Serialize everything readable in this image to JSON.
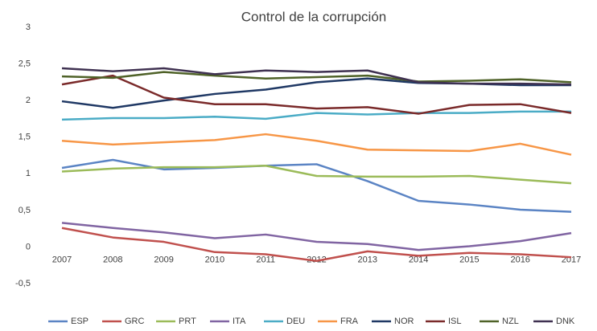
{
  "chart_data": {
    "type": "line",
    "title": "Control de la corrupción",
    "categories": [
      "2007",
      "2008",
      "2009",
      "2010",
      "2011",
      "2012",
      "2013",
      "2014",
      "2015",
      "2016",
      "2017"
    ],
    "ylim": [
      -0.5,
      3
    ],
    "yticks": [
      {
        "value": -0.5,
        "label": "-0,5"
      },
      0,
      {
        "value": 0.5,
        "label": "0,5"
      },
      1,
      {
        "value": 1.5,
        "label": "1,5"
      },
      2,
      {
        "value": 2.5,
        "label": "2,5"
      },
      3
    ],
    "grid": false,
    "legend": "bottom",
    "series": [
      {
        "name": "ESP",
        "color": "#5b84c4",
        "values": [
          1.08,
          1.19,
          1.06,
          1.08,
          1.11,
          1.13,
          0.9,
          0.63,
          0.58,
          0.51,
          0.48
        ]
      },
      {
        "name": "GRC",
        "color": "#c0504d",
        "values": [
          0.26,
          0.13,
          0.07,
          -0.07,
          -0.1,
          -0.19,
          -0.06,
          -0.12,
          -0.08,
          -0.1,
          -0.14
        ]
      },
      {
        "name": "PRT",
        "color": "#9bbb59",
        "values": [
          1.03,
          1.07,
          1.09,
          1.09,
          1.11,
          0.97,
          0.96,
          0.96,
          0.97,
          0.92,
          0.87
        ]
      },
      {
        "name": "ITA",
        "color": "#8064a2",
        "values": [
          0.33,
          0.26,
          0.2,
          0.12,
          0.17,
          0.07,
          0.04,
          -0.04,
          0.01,
          0.08,
          0.19
        ]
      },
      {
        "name": "DEU",
        "color": "#4bacc6",
        "values": [
          1.74,
          1.76,
          1.76,
          1.78,
          1.75,
          1.83,
          1.81,
          1.83,
          1.83,
          1.85,
          1.85
        ]
      },
      {
        "name": "FRA",
        "color": "#f79646",
        "values": [
          1.45,
          1.4,
          1.43,
          1.46,
          1.54,
          1.45,
          1.33,
          1.32,
          1.31,
          1.41,
          1.26
        ]
      },
      {
        "name": "NOR",
        "color": "#1f3864",
        "values": [
          1.99,
          1.9,
          2.0,
          2.09,
          2.15,
          2.25,
          2.3,
          2.24,
          2.23,
          2.21,
          2.21
        ]
      },
      {
        "name": "ISL",
        "color": "#7a2a2a",
        "values": [
          2.22,
          2.34,
          2.04,
          1.95,
          1.95,
          1.89,
          1.91,
          1.82,
          1.94,
          1.95,
          1.83
        ]
      },
      {
        "name": "NZL",
        "color": "#4f6228",
        "values": [
          2.33,
          2.31,
          2.39,
          2.34,
          2.3,
          2.32,
          2.34,
          2.26,
          2.27,
          2.29,
          2.25
        ]
      },
      {
        "name": "DNK",
        "color": "#3f3151",
        "values": [
          2.44,
          2.4,
          2.44,
          2.36,
          2.41,
          2.39,
          2.41,
          2.25,
          2.23,
          2.23,
          2.22
        ]
      }
    ]
  }
}
